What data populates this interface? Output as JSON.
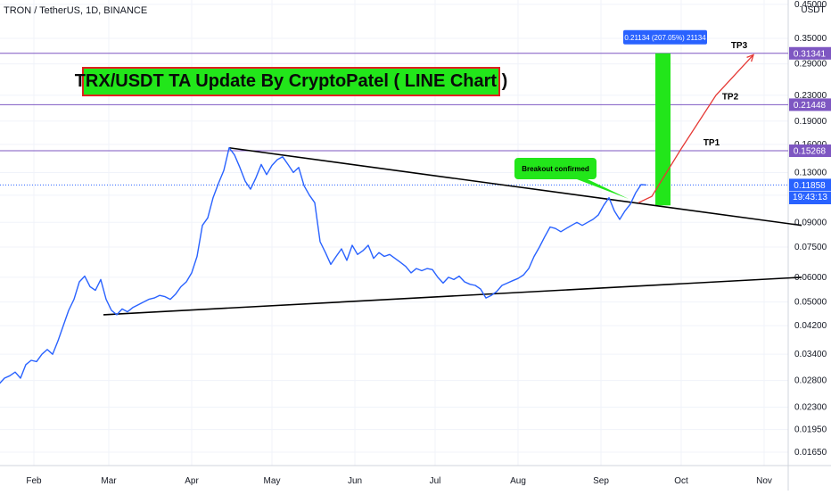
{
  "chart_data": {
    "type": "line",
    "symbol_title": "TRON / TetherUS, 1D, BINANCE",
    "headline": "TRX/USDT TA Update By CryptoPatel ( LINE Chart )",
    "currency": "USDT",
    "y_scale": "log",
    "ylim": [
      0.0155,
      0.45
    ],
    "y_ticks": [
      "0.45000",
      "0.35000",
      "0.29000",
      "0.23000",
      "0.19000",
      "0.16000",
      "0.13000",
      "0.11000",
      "0.09000",
      "0.07500",
      "0.06000",
      "0.05000",
      "0.04200",
      "0.03400",
      "0.02800",
      "0.02300",
      "0.01950",
      "0.01650"
    ],
    "x_ticks": [
      "Feb",
      "Mar",
      "Apr",
      "May",
      "Jun",
      "Jul",
      "Aug",
      "Sep",
      "Oct",
      "Nov"
    ],
    "grid": true,
    "series": [
      {
        "points": [
          [
            "2021-01-17",
            0.0295
          ],
          [
            "2021-01-19",
            0.0273
          ],
          [
            "2021-01-21",
            0.0285
          ],
          [
            "2021-01-23",
            0.029
          ],
          [
            "2021-01-25",
            0.0298
          ],
          [
            "2021-01-27",
            0.0285
          ],
          [
            "2021-01-29",
            0.0315
          ],
          [
            "2021-01-31",
            0.0325
          ],
          [
            "2021-02-02",
            0.0322
          ],
          [
            "2021-02-04",
            0.034
          ],
          [
            "2021-02-06",
            0.0352
          ],
          [
            "2021-02-08",
            0.034
          ],
          [
            "2021-02-10",
            0.0375
          ],
          [
            "2021-02-12",
            0.042
          ],
          [
            "2021-02-14",
            0.047
          ],
          [
            "2021-02-16",
            0.051
          ],
          [
            "2021-02-18",
            0.058
          ],
          [
            "2021-02-20",
            0.0605
          ],
          [
            "2021-02-22",
            0.056
          ],
          [
            "2021-02-24",
            0.0545
          ],
          [
            "2021-02-26",
            0.059
          ],
          [
            "2021-02-28",
            0.051
          ],
          [
            "2021-03-02",
            0.047
          ],
          [
            "2021-03-04",
            0.0455
          ],
          [
            "2021-03-06",
            0.0475
          ],
          [
            "2021-03-08",
            0.0465
          ],
          [
            "2021-03-10",
            0.048
          ],
          [
            "2021-03-12",
            0.049
          ],
          [
            "2021-03-14",
            0.05
          ],
          [
            "2021-03-16",
            0.051
          ],
          [
            "2021-03-18",
            0.0515
          ],
          [
            "2021-03-20",
            0.0525
          ],
          [
            "2021-03-22",
            0.052
          ],
          [
            "2021-03-24",
            0.051
          ],
          [
            "2021-03-26",
            0.053
          ],
          [
            "2021-03-28",
            0.056
          ],
          [
            "2021-03-30",
            0.058
          ],
          [
            "2021-04-01",
            0.062
          ],
          [
            "2021-04-03",
            0.07
          ],
          [
            "2021-04-05",
            0.088
          ],
          [
            "2021-04-07",
            0.093
          ],
          [
            "2021-04-09",
            0.108
          ],
          [
            "2021-04-11",
            0.12
          ],
          [
            "2021-04-13",
            0.132
          ],
          [
            "2021-04-15",
            0.156
          ],
          [
            "2021-04-17",
            0.148
          ],
          [
            "2021-04-19",
            0.135
          ],
          [
            "2021-04-21",
            0.122
          ],
          [
            "2021-04-23",
            0.115
          ],
          [
            "2021-04-25",
            0.125
          ],
          [
            "2021-04-27",
            0.138
          ],
          [
            "2021-04-29",
            0.128
          ],
          [
            "2021-05-01",
            0.137
          ],
          [
            "2021-05-03",
            0.143
          ],
          [
            "2021-05-05",
            0.146
          ],
          [
            "2021-05-07",
            0.138
          ],
          [
            "2021-05-09",
            0.13
          ],
          [
            "2021-05-11",
            0.135
          ],
          [
            "2021-05-13",
            0.118
          ],
          [
            "2021-05-15",
            0.11
          ],
          [
            "2021-05-17",
            0.104
          ],
          [
            "2021-05-19",
            0.078
          ],
          [
            "2021-05-21",
            0.072
          ],
          [
            "2021-05-23",
            0.066
          ],
          [
            "2021-05-25",
            0.07
          ],
          [
            "2021-05-27",
            0.074
          ],
          [
            "2021-05-29",
            0.068
          ],
          [
            "2021-05-31",
            0.076
          ],
          [
            "2021-06-02",
            0.071
          ],
          [
            "2021-06-04",
            0.073
          ],
          [
            "2021-06-06",
            0.076
          ],
          [
            "2021-06-08",
            0.069
          ],
          [
            "2021-06-10",
            0.072
          ],
          [
            "2021-06-12",
            0.07
          ],
          [
            "2021-06-14",
            0.071
          ],
          [
            "2021-06-16",
            0.069
          ],
          [
            "2021-06-18",
            0.067
          ],
          [
            "2021-06-20",
            0.065
          ],
          [
            "2021-06-22",
            0.062
          ],
          [
            "2021-06-24",
            0.064
          ],
          [
            "2021-06-26",
            0.063
          ],
          [
            "2021-06-28",
            0.064
          ],
          [
            "2021-06-30",
            0.0635
          ],
          [
            "2021-07-02",
            0.06
          ],
          [
            "2021-07-04",
            0.0575
          ],
          [
            "2021-07-06",
            0.06
          ],
          [
            "2021-07-08",
            0.059
          ],
          [
            "2021-07-10",
            0.0605
          ],
          [
            "2021-07-12",
            0.058
          ],
          [
            "2021-07-14",
            0.057
          ],
          [
            "2021-07-16",
            0.0565
          ],
          [
            "2021-07-18",
            0.055
          ],
          [
            "2021-07-20",
            0.0515
          ],
          [
            "2021-07-22",
            0.0525
          ],
          [
            "2021-07-24",
            0.054
          ],
          [
            "2021-07-26",
            0.0565
          ],
          [
            "2021-07-28",
            0.0575
          ],
          [
            "2021-07-30",
            0.0585
          ],
          [
            "2021-08-01",
            0.0595
          ],
          [
            "2021-08-03",
            0.061
          ],
          [
            "2021-08-05",
            0.064
          ],
          [
            "2021-08-07",
            0.07
          ],
          [
            "2021-08-09",
            0.075
          ],
          [
            "2021-08-11",
            0.081
          ],
          [
            "2021-08-13",
            0.087
          ],
          [
            "2021-08-15",
            0.086
          ],
          [
            "2021-08-17",
            0.084
          ],
          [
            "2021-08-19",
            0.086
          ],
          [
            "2021-08-21",
            0.088
          ],
          [
            "2021-08-23",
            0.09
          ],
          [
            "2021-08-25",
            0.088
          ],
          [
            "2021-08-27",
            0.09
          ],
          [
            "2021-08-29",
            0.092
          ],
          [
            "2021-08-31",
            0.095
          ],
          [
            "2021-09-02",
            0.102
          ],
          [
            "2021-09-04",
            0.108
          ],
          [
            "2021-09-06",
            0.098
          ],
          [
            "2021-09-08",
            0.092
          ],
          [
            "2021-09-10",
            0.098
          ],
          [
            "2021-09-12",
            0.103
          ],
          [
            "2021-09-14",
            0.112
          ],
          [
            "2021-09-16",
            0.119
          ],
          [
            "2021-09-18",
            0.1186
          ]
        ]
      }
    ],
    "trendlines": [
      {
        "from": [
          "2021-04-15",
          0.156
        ],
        "to": [
          "2021-11-15",
          0.088
        ]
      },
      {
        "from": [
          "2021-02-27",
          0.0455
        ],
        "to": [
          "2021-11-15",
          0.06
        ]
      }
    ],
    "projection": [
      [
        "2021-09-15",
        0.104
      ],
      [
        "2021-09-20",
        0.109
      ],
      [
        "2021-10-01",
        0.155
      ],
      [
        "2021-10-14",
        0.23
      ],
      [
        "2021-10-28",
        0.31
      ]
    ],
    "targets": [
      {
        "name": "TP1",
        "value": 0.15268,
        "label": "0.15268"
      },
      {
        "name": "TP2",
        "value": 0.21448,
        "label": "0.21448"
      },
      {
        "name": "TP3",
        "value": 0.31341,
        "label": "0.31341"
      }
    ],
    "current_price": {
      "value": 0.11858,
      "label": "0.11858",
      "countdown": "19:43:13"
    },
    "measure": {
      "from": 0.102,
      "to": 0.3134,
      "date": "2021-09-24",
      "label": "0.21134 (207.05%) 21134"
    },
    "annotations": [
      {
        "text": "Breakout confirmed",
        "color": "#22e61a"
      }
    ],
    "colors": {
      "price": "#2962ff",
      "trendline": "#000000",
      "target": "#7e57c2",
      "projection": "#e53935",
      "measure": "#22e61a",
      "current": "#2962ff"
    }
  }
}
